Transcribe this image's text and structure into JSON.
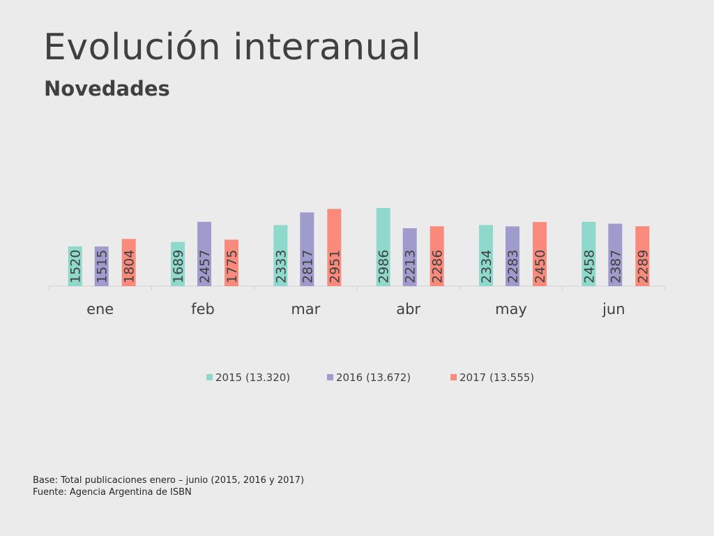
{
  "header": {
    "title": "Evolución interanual",
    "subtitle": "Novedades"
  },
  "footer": {
    "line1": "Base: Total publicaciones  enero –  junio (2015, 2016 y 2017)",
    "line2": "Fuente: Agencia Argentina de ISBN"
  },
  "colors": {
    "series_2015": "#8fd8cc",
    "series_2016": "#9f9bcd",
    "series_2017": "#fa8a7c",
    "axis": "#d0d0d0",
    "text": "#404040"
  },
  "chart_data": {
    "type": "bar",
    "title": "",
    "xlabel": "",
    "ylabel": "",
    "ylim": [
      0,
      3000
    ],
    "grid": false,
    "legend_position": "bottom",
    "categories": [
      "ene",
      "feb",
      "mar",
      "abr",
      "may",
      "jun"
    ],
    "series": [
      {
        "name": "2015 (13.320)",
        "values": [
          1520,
          1689,
          2333,
          2986,
          2334,
          2458
        ]
      },
      {
        "name": "2016 (13.672)",
        "values": [
          1515,
          2457,
          2817,
          2213,
          2283,
          2387
        ]
      },
      {
        "name": "2017 (13.555)",
        "values": [
          1804,
          1775,
          2951,
          2286,
          2450,
          2289
        ]
      }
    ]
  }
}
